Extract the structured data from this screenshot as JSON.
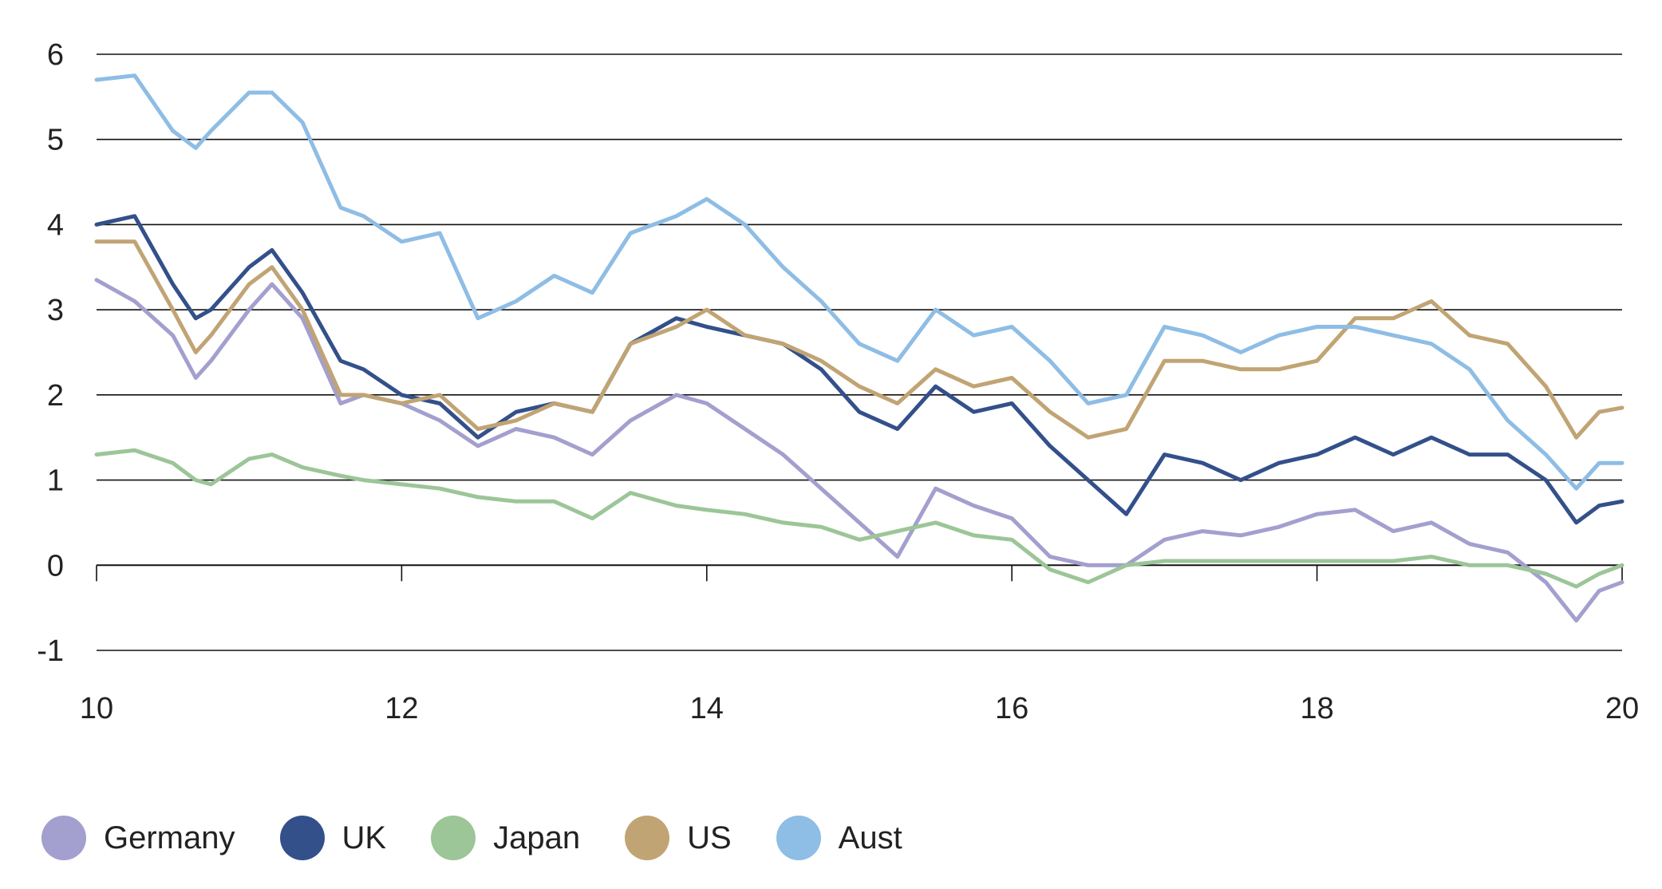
{
  "chart_data": {
    "type": "line",
    "x_tick_labels": [
      "10",
      "12",
      "14",
      "16",
      "18",
      "20"
    ],
    "y_tick_labels": [
      "6",
      "5",
      "4",
      "3",
      "2",
      "1",
      "0",
      "-1"
    ],
    "xlim": [
      2010,
      2020
    ],
    "ylim": [
      -1,
      6
    ],
    "grid": "horizontal",
    "legend_position": "bottom-left",
    "x": [
      2010.0,
      2010.25,
      2010.5,
      2010.65,
      2010.75,
      2011.0,
      2011.15,
      2011.35,
      2011.6,
      2011.75,
      2012.0,
      2012.25,
      2012.5,
      2012.75,
      2013.0,
      2013.25,
      2013.5,
      2013.8,
      2014.0,
      2014.25,
      2014.5,
      2014.75,
      2015.0,
      2015.25,
      2015.5,
      2015.75,
      2016.0,
      2016.25,
      2016.5,
      2016.75,
      2017.0,
      2017.25,
      2017.5,
      2017.75,
      2018.0,
      2018.25,
      2018.5,
      2018.75,
      2019.0,
      2019.25,
      2019.5,
      2019.7,
      2019.85,
      2020.0
    ],
    "series": [
      {
        "name": "Germany",
        "color": "#a39fce",
        "values": [
          3.35,
          3.1,
          2.7,
          2.2,
          2.4,
          3.0,
          3.3,
          2.9,
          1.9,
          2.0,
          1.9,
          1.7,
          1.4,
          1.6,
          1.5,
          1.3,
          1.7,
          2.0,
          1.9,
          1.6,
          1.3,
          0.9,
          0.5,
          0.1,
          0.9,
          0.7,
          0.55,
          0.1,
          0.0,
          0.0,
          0.3,
          0.4,
          0.35,
          0.45,
          0.6,
          0.65,
          0.4,
          0.5,
          0.25,
          0.15,
          -0.2,
          -0.65,
          -0.3,
          -0.2
        ]
      },
      {
        "name": "UK",
        "color": "#33508a",
        "values": [
          4.0,
          4.1,
          3.3,
          2.9,
          3.0,
          3.5,
          3.7,
          3.2,
          2.4,
          2.3,
          2.0,
          1.9,
          1.5,
          1.8,
          1.9,
          1.8,
          2.6,
          2.9,
          2.8,
          2.7,
          2.6,
          2.3,
          1.8,
          1.6,
          2.1,
          1.8,
          1.9,
          1.4,
          1.0,
          0.6,
          1.3,
          1.2,
          1.0,
          1.2,
          1.3,
          1.5,
          1.3,
          1.5,
          1.3,
          1.3,
          1.0,
          0.5,
          0.7,
          0.75
        ]
      },
      {
        "name": "Japan",
        "color": "#9cc598",
        "values": [
          1.3,
          1.35,
          1.2,
          1.0,
          0.95,
          1.25,
          1.3,
          1.15,
          1.05,
          1.0,
          0.95,
          0.9,
          0.8,
          0.75,
          0.75,
          0.55,
          0.85,
          0.7,
          0.65,
          0.6,
          0.5,
          0.45,
          0.3,
          0.4,
          0.5,
          0.35,
          0.3,
          -0.05,
          -0.2,
          0.0,
          0.05,
          0.05,
          0.05,
          0.05,
          0.05,
          0.05,
          0.05,
          0.1,
          0.0,
          0.0,
          -0.1,
          -0.25,
          -0.1,
          0.0
        ]
      },
      {
        "name": "US",
        "color": "#c1a474",
        "values": [
          3.8,
          3.8,
          3.0,
          2.5,
          2.7,
          3.3,
          3.5,
          3.0,
          2.0,
          2.0,
          1.9,
          2.0,
          1.6,
          1.7,
          1.9,
          1.8,
          2.6,
          2.8,
          3.0,
          2.7,
          2.6,
          2.4,
          2.1,
          1.9,
          2.3,
          2.1,
          2.2,
          1.8,
          1.5,
          1.6,
          2.4,
          2.4,
          2.3,
          2.3,
          2.4,
          2.9,
          2.9,
          3.1,
          2.7,
          2.6,
          2.1,
          1.5,
          1.8,
          1.85
        ]
      },
      {
        "name": "Aust",
        "color": "#8ebde5",
        "values": [
          5.7,
          5.75,
          5.1,
          4.9,
          5.1,
          5.55,
          5.55,
          5.2,
          4.2,
          4.1,
          3.8,
          3.9,
          2.9,
          3.1,
          3.4,
          3.2,
          3.9,
          4.1,
          4.3,
          4.0,
          3.5,
          3.1,
          2.6,
          2.4,
          3.0,
          2.7,
          2.8,
          2.4,
          1.9,
          2.0,
          2.8,
          2.7,
          2.5,
          2.7,
          2.8,
          2.8,
          2.7,
          2.6,
          2.3,
          1.7,
          1.3,
          0.9,
          1.2,
          1.2
        ]
      }
    ]
  }
}
